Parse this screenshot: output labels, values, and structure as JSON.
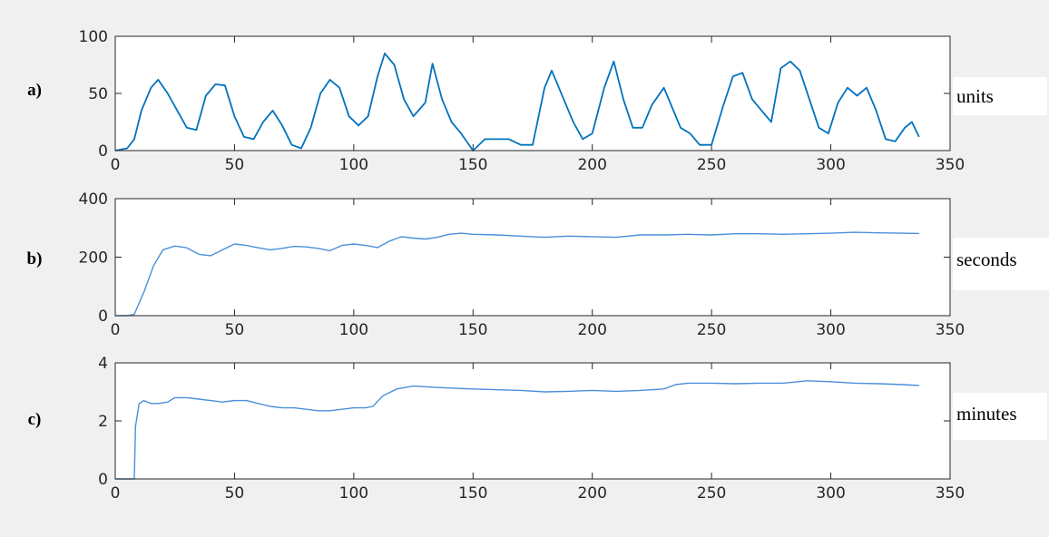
{
  "chart_data": [
    {
      "type": "line",
      "panel_label": "a)",
      "unit_label": "units",
      "color": "#0072bd",
      "xlim": [
        0,
        350
      ],
      "ylim": [
        0,
        100
      ],
      "xticks": [
        0,
        50,
        100,
        150,
        200,
        250,
        300,
        350
      ],
      "yticks": [
        0,
        50,
        100
      ],
      "x": [
        0,
        5,
        8,
        11,
        15,
        18,
        22,
        26,
        30,
        34,
        38,
        42,
        46,
        50,
        54,
        58,
        62,
        66,
        70,
        74,
        78,
        82,
        86,
        90,
        94,
        98,
        102,
        106,
        110,
        113,
        117,
        121,
        125,
        130,
        133,
        137,
        141,
        145,
        150,
        155,
        160,
        165,
        170,
        175,
        180,
        183,
        188,
        192,
        196,
        200,
        205,
        209,
        213,
        217,
        221,
        225,
        230,
        233,
        237,
        241,
        245,
        250,
        255,
        259,
        263,
        267,
        271,
        275,
        279,
        283,
        287,
        291,
        295,
        299,
        303,
        307,
        311,
        315,
        319,
        323,
        327,
        331,
        334,
        337
      ],
      "y": [
        0,
        2,
        10,
        35,
        55,
        62,
        50,
        35,
        20,
        18,
        48,
        58,
        57,
        30,
        12,
        10,
        25,
        35,
        22,
        5,
        2,
        20,
        50,
        62,
        55,
        30,
        22,
        30,
        65,
        85,
        75,
        45,
        30,
        42,
        76,
        45,
        25,
        15,
        0,
        10,
        10,
        10,
        5,
        5,
        55,
        70,
        45,
        25,
        10,
        15,
        55,
        78,
        45,
        20,
        20,
        40,
        55,
        40,
        20,
        15,
        5,
        5,
        40,
        65,
        68,
        45,
        35,
        25,
        72,
        78,
        70,
        45,
        20,
        15,
        42,
        55,
        48,
        55,
        35,
        10,
        8,
        20,
        25,
        12
      ]
    },
    {
      "type": "line",
      "panel_label": "b)",
      "unit_label": "seconds",
      "color": "#4a90d9",
      "xlim": [
        0,
        350
      ],
      "ylim": [
        0,
        400
      ],
      "xticks": [
        0,
        50,
        100,
        150,
        200,
        250,
        300,
        350
      ],
      "yticks": [
        0,
        200,
        400
      ],
      "x": [
        0,
        5,
        8,
        12,
        16,
        20,
        25,
        30,
        35,
        40,
        45,
        50,
        55,
        60,
        65,
        70,
        75,
        80,
        85,
        90,
        95,
        100,
        105,
        110,
        115,
        120,
        125,
        130,
        135,
        140,
        145,
        150,
        160,
        170,
        180,
        190,
        200,
        210,
        220,
        230,
        240,
        250,
        260,
        270,
        280,
        290,
        300,
        310,
        320,
        330,
        337
      ],
      "y": [
        0,
        0,
        5,
        80,
        170,
        225,
        238,
        232,
        210,
        205,
        225,
        245,
        240,
        232,
        225,
        230,
        237,
        235,
        230,
        222,
        240,
        245,
        240,
        233,
        255,
        270,
        265,
        262,
        268,
        278,
        282,
        278,
        276,
        272,
        268,
        272,
        270,
        268,
        276,
        276,
        278,
        276,
        280,
        280,
        278,
        280,
        282,
        285,
        283,
        282,
        281
      ]
    },
    {
      "type": "line",
      "panel_label": "c)",
      "unit_label": "minutes",
      "color": "#4a90d9",
      "xlim": [
        0,
        350
      ],
      "ylim": [
        0,
        4
      ],
      "xticks": [
        0,
        50,
        100,
        150,
        200,
        250,
        300,
        350
      ],
      "yticks": [
        0,
        2,
        4
      ],
      "x": [
        0,
        5,
        8,
        8.5,
        10,
        12,
        15,
        18,
        22,
        25,
        30,
        35,
        40,
        45,
        50,
        55,
        60,
        65,
        70,
        75,
        80,
        85,
        90,
        95,
        100,
        105,
        108,
        112,
        118,
        125,
        135,
        150,
        170,
        180,
        190,
        200,
        210,
        220,
        230,
        235,
        240,
        250,
        260,
        270,
        280,
        290,
        300,
        310,
        320,
        330,
        337
      ],
      "y": [
        0,
        0,
        0,
        1.8,
        2.6,
        2.7,
        2.6,
        2.6,
        2.65,
        2.8,
        2.8,
        2.75,
        2.7,
        2.65,
        2.7,
        2.7,
        2.6,
        2.5,
        2.45,
        2.45,
        2.4,
        2.35,
        2.35,
        2.4,
        2.45,
        2.45,
        2.5,
        2.85,
        3.1,
        3.2,
        3.15,
        3.1,
        3.05,
        3.0,
        3.02,
        3.05,
        3.02,
        3.05,
        3.1,
        3.25,
        3.3,
        3.3,
        3.28,
        3.3,
        3.3,
        3.38,
        3.35,
        3.3,
        3.28,
        3.25,
        3.22
      ]
    }
  ]
}
